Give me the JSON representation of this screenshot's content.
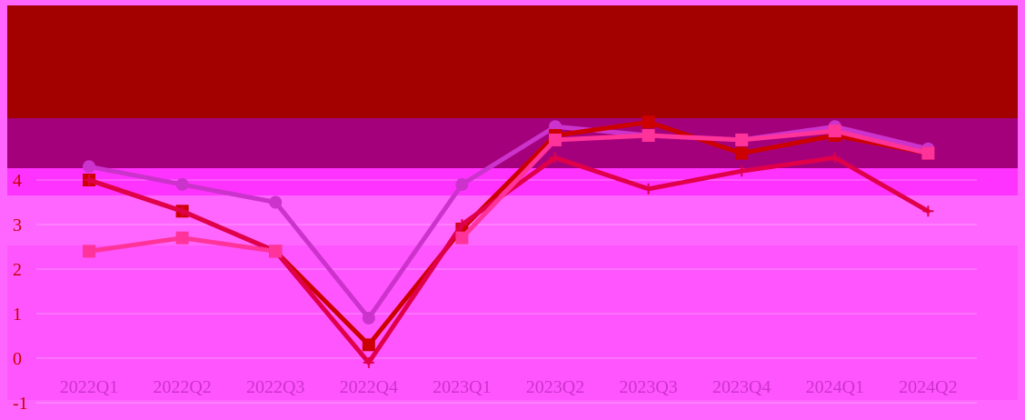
{
  "chart_data": {
    "type": "line",
    "title": "",
    "xlabel": "",
    "ylabel": "",
    "categories": [
      "2022Q1",
      "2022Q2",
      "2022Q3",
      "2022Q4",
      "2023Q1",
      "2023Q2",
      "2023Q3",
      "2023Q4",
      "2024Q1",
      "2024Q2"
    ],
    "y_ticks": [
      "-1",
      "0",
      "1",
      "2",
      "3",
      "4"
    ],
    "ylim": [
      -1,
      5.6
    ],
    "grid": true,
    "legend": "none",
    "series": [
      {
        "values": [
          4.3,
          3.9,
          3.5,
          0.9,
          3.9,
          5.2,
          5.0,
          4.9,
          5.2,
          4.7
        ],
        "color": "#cc33cc",
        "marker": "circle"
      },
      {
        "values": [
          4.0,
          3.3,
          2.4,
          0.3,
          2.9,
          5.0,
          5.3,
          4.6,
          5.0,
          4.6
        ],
        "color": "#cc0000",
        "marker": "square"
      },
      {
        "values": [
          4.0,
          3.3,
          2.4,
          -0.1,
          3.0,
          4.5,
          3.8,
          4.2,
          4.5,
          3.3
        ],
        "color": "#e0004a",
        "marker": "plus"
      },
      {
        "values": [
          2.4,
          2.7,
          2.4,
          null,
          2.7,
          4.9,
          5.0,
          4.9,
          5.1,
          4.6
        ],
        "color": "#ff3399",
        "marker": "square"
      }
    ],
    "colors": {
      "background": "#ff66ff",
      "header_band": "#a30000",
      "mid_band": "#a4007c",
      "tick_label": "#cc0000",
      "category_label": "#cc33cc"
    }
  }
}
